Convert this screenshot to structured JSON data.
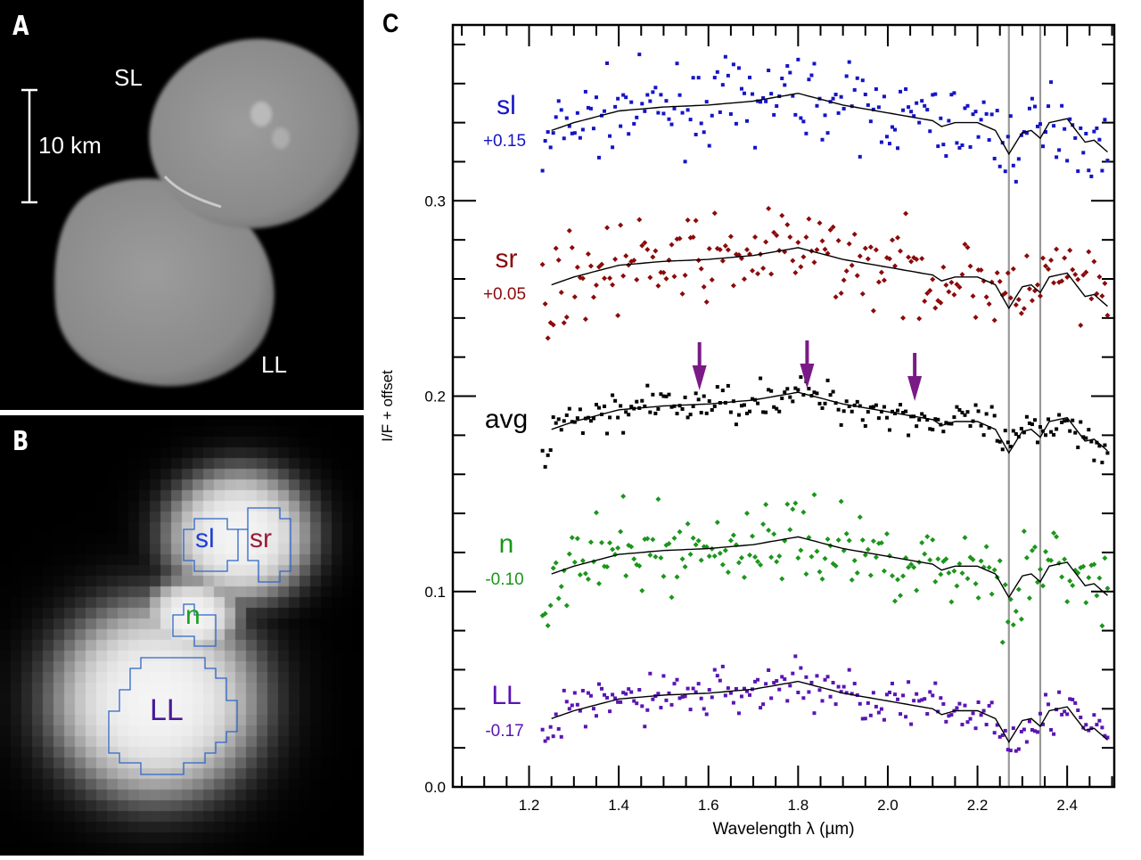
{
  "panels": {
    "a": {
      "label": "A",
      "scale_bar_label": "10 km",
      "lobe_labels": [
        "SL",
        "LL"
      ]
    },
    "b": {
      "label": "B",
      "regions": [
        {
          "name": "sl",
          "color": "#1f3fd6"
        },
        {
          "name": "sr",
          "color": "#9b1b3a"
        },
        {
          "name": "n",
          "color": "#1aa01a"
        },
        {
          "name": "LL",
          "color": "#4b1a99"
        }
      ],
      "outline_color": "#2e66c8"
    },
    "c": {
      "label": "C"
    }
  },
  "chart_data": {
    "type": "scatter",
    "xlabel": "Wavelength λ (µm)",
    "ylabel": "I/F + offset",
    "xlim": [
      1.03,
      2.505
    ],
    "ylim": [
      0.0,
      0.39
    ],
    "xticks": [
      "1.2",
      "1.4",
      "1.6",
      "1.8",
      "2.0",
      "2.2",
      "2.4"
    ],
    "xtick_values": [
      1.2,
      1.4,
      1.6,
      1.8,
      2.0,
      2.2,
      2.4
    ],
    "yticks": [
      "0.0",
      "0.1",
      "0.2",
      "0.3"
    ],
    "ytick_values": [
      0.0,
      0.1,
      0.2,
      0.3
    ],
    "vertical_lines": [
      2.27,
      2.34
    ],
    "vertical_line_color": "#999999",
    "arrows": [
      1.58,
      1.82,
      2.06
    ],
    "arrow_color": "#7a1a86",
    "model_profile": {
      "x": [
        1.25,
        1.3,
        1.4,
        1.5,
        1.6,
        1.7,
        1.8,
        1.9,
        2.0,
        2.1,
        2.12,
        2.15,
        2.2,
        2.24,
        2.27,
        2.3,
        2.32,
        2.34,
        2.36,
        2.4,
        2.44,
        2.46,
        2.49
      ],
      "rel": [
        0.0,
        0.004,
        0.01,
        0.012,
        0.013,
        0.015,
        0.019,
        0.013,
        0.009,
        0.005,
        0.002,
        0.004,
        0.004,
        0.0,
        -0.012,
        -0.001,
        -0.0,
        -0.004,
        0.004,
        0.006,
        -0.006,
        -0.005,
        -0.011
      ]
    },
    "series": [
      {
        "name": "sl",
        "offset_label": "+0.15",
        "color": "#1414c8",
        "marker": "square",
        "base": 0.336,
        "scatter": 0.012
      },
      {
        "name": "sr",
        "offset_label": "+0.05",
        "color": "#8b0a0a",
        "marker": "diamond",
        "base": 0.257,
        "scatter": 0.013
      },
      {
        "name": "avg",
        "offset_label": "",
        "color": "#000000",
        "marker": "square",
        "base": 0.183,
        "scatter": 0.006
      },
      {
        "name": "n",
        "offset_label": "-0.10",
        "color": "#1a961a",
        "marker": "diamond",
        "base": 0.109,
        "scatter": 0.013
      },
      {
        "name": "LL",
        "offset_label": "-0.17",
        "color": "#5a14b4",
        "marker": "square",
        "base": 0.035,
        "scatter": 0.008
      }
    ]
  }
}
